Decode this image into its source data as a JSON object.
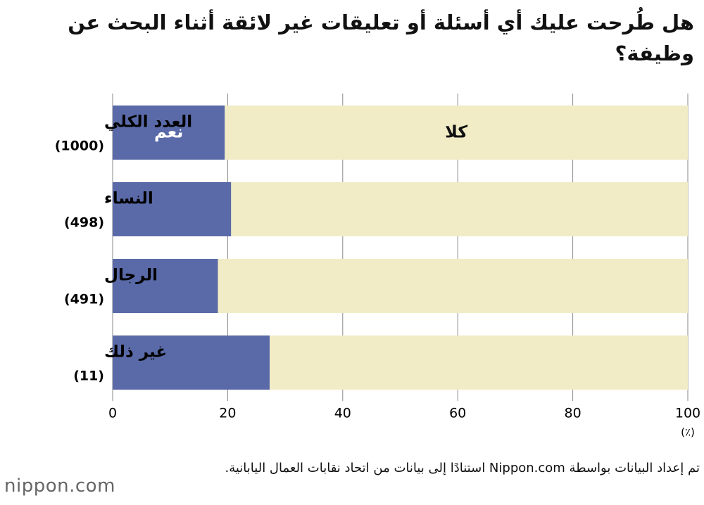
{
  "chart_data": {
    "type": "stacked-barh",
    "title": "هل طُرحت عليك أي أسئلة أو تعليقات غير لائقة أثناء البحث عن وظيفة؟",
    "categories": [
      "العدد الكلي",
      "النساء",
      "الرجال",
      "غير ذلك"
    ],
    "sample_sizes": [
      "(1000)",
      "(498)",
      "(491)",
      "(11)"
    ],
    "series": [
      {
        "name": "نعم",
        "color": "#5a6aa8",
        "values": [
          19.5,
          20.6,
          18.3,
          27.3
        ]
      },
      {
        "name": "كلا",
        "color": "#f1ecc6",
        "values": [
          80.5,
          79.4,
          81.7,
          72.7
        ]
      }
    ],
    "xlim": [
      0,
      100
    ],
    "xticks": [
      0,
      20,
      40,
      60,
      80,
      100
    ],
    "grid": true,
    "x_unit": "(٪)",
    "source": "تم إعداد البيانات بواسطة Nippon.com استنادًا إلى بيانات من اتحاد نقابات العمال اليابانية.",
    "logo": "nippon.com"
  }
}
